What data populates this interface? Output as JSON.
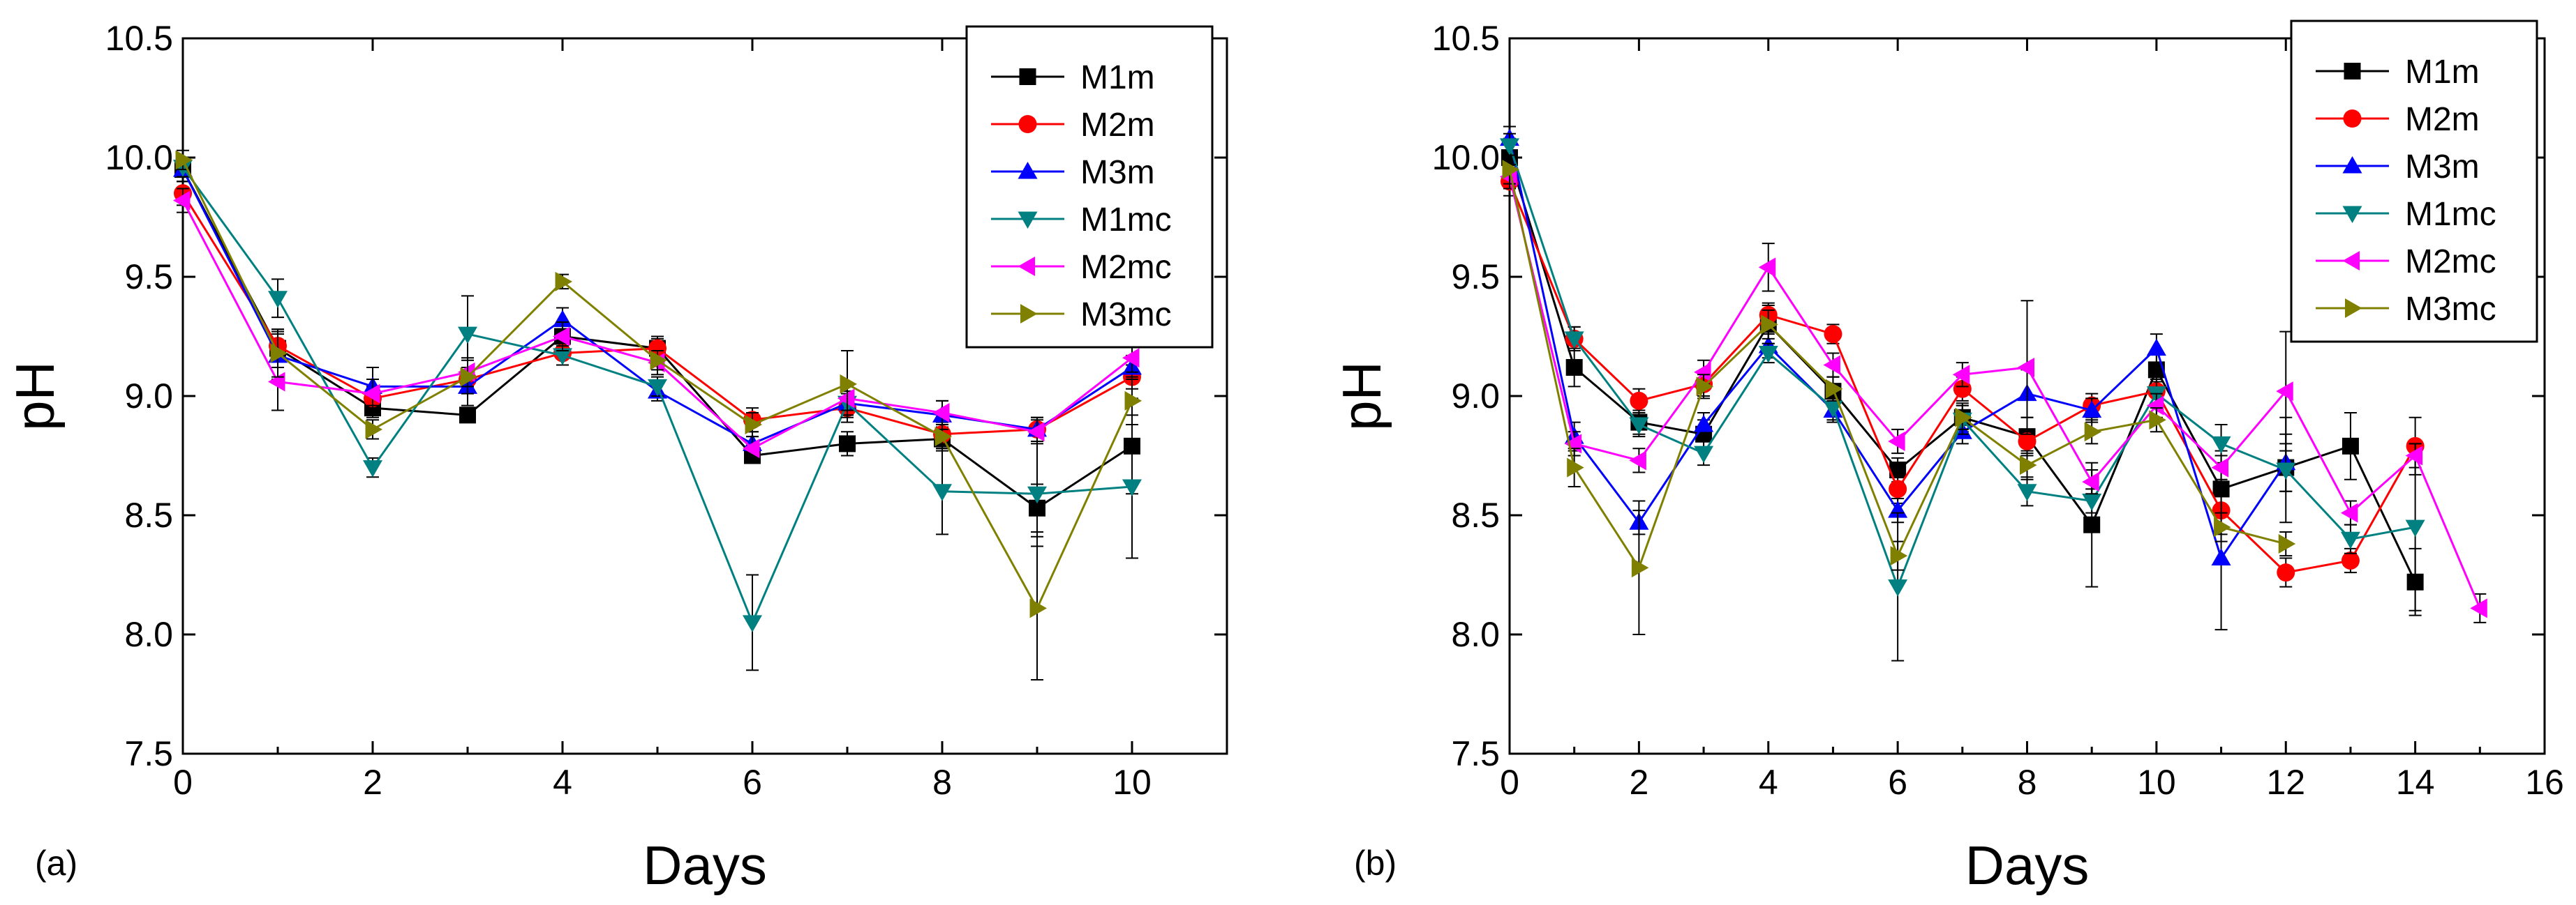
{
  "chart_data": [
    {
      "type": "line",
      "panel_label": "(a)",
      "xlabel": "Days",
      "ylabel": "pH",
      "xlim": [
        0,
        11
      ],
      "ylim": [
        7.5,
        10.5
      ],
      "xticks": [
        0,
        2,
        4,
        6,
        8,
        10
      ],
      "xtick_labels": [
        "0",
        "2",
        "4",
        "6",
        "8",
        "10"
      ],
      "yticks": [
        7.5,
        8.0,
        8.5,
        9.0,
        9.5,
        10.0,
        10.5
      ],
      "ytick_labels": [
        "7.5",
        "8.0",
        "8.5",
        "9.0",
        "9.5",
        "10.0",
        "10.5"
      ],
      "legend_position": "top-right",
      "series": [
        {
          "name": "M1m",
          "color": "#000000",
          "marker": "square",
          "x": [
            0,
            1,
            2,
            3,
            4,
            5,
            6,
            7,
            8,
            9,
            10
          ],
          "y": [
            9.95,
            9.2,
            8.95,
            8.92,
            9.25,
            9.2,
            8.75,
            8.8,
            8.82,
            8.53,
            8.79
          ],
          "err": [
            0.05,
            0.08,
            0.04,
            0.03,
            0.05,
            0.04,
            0.03,
            0.05,
            0.05,
            0.1,
            0.2
          ]
        },
        {
          "name": "M2m",
          "color": "#ff0000",
          "marker": "circle",
          "x": [
            0,
            1,
            2,
            3,
            4,
            5,
            6,
            7,
            8,
            9,
            10
          ],
          "y": [
            9.85,
            9.21,
            8.99,
            9.07,
            9.18,
            9.2,
            8.9,
            8.95,
            8.84,
            8.86,
            9.08
          ],
          "err": [
            0.05,
            0.05,
            0.05,
            0.05,
            0.05,
            0.05,
            0.05,
            0.06,
            0.05,
            0.05,
            0.05
          ]
        },
        {
          "name": "M3m",
          "color": "#0000ff",
          "marker": "triangle-up",
          "x": [
            0,
            1,
            2,
            3,
            4,
            5,
            6,
            7,
            8,
            9,
            10
          ],
          "y": [
            9.95,
            9.17,
            9.04,
            9.04,
            9.32,
            9.02,
            8.8,
            8.97,
            8.92,
            8.86,
            9.12
          ],
          "err": [
            0.05,
            0.1,
            0.08,
            0.08,
            0.05,
            0.04,
            0.05,
            0.05,
            0.06,
            0.05,
            0.05
          ]
        },
        {
          "name": "M1mc",
          "color": "#008080",
          "marker": "triangle-down",
          "x": [
            0,
            1,
            2,
            3,
            4,
            5,
            6,
            7,
            8,
            9,
            10
          ],
          "y": [
            9.96,
            9.41,
            8.7,
            9.26,
            9.17,
            9.04,
            8.05,
            8.97,
            8.6,
            8.59,
            8.62
          ],
          "err": [
            0.04,
            0.08,
            0.04,
            0.16,
            0.04,
            0.04,
            0.2,
            0.05,
            0.18,
            0.22,
            0.3
          ]
        },
        {
          "name": "M2mc",
          "color": "#ff00ff",
          "marker": "triangle-left",
          "x": [
            0,
            1,
            2,
            3,
            4,
            5,
            6,
            7,
            8,
            9,
            10
          ],
          "y": [
            9.82,
            9.06,
            9.01,
            9.1,
            9.25,
            9.14,
            8.78,
            8.99,
            8.93,
            8.85,
            9.16
          ],
          "err": [
            0.05,
            0.12,
            0.06,
            0.06,
            0.06,
            0.05,
            0.05,
            0.05,
            0.05,
            0.05,
            0.06
          ]
        },
        {
          "name": "M3mc",
          "color": "#808000",
          "marker": "triangle-right",
          "x": [
            0,
            1,
            2,
            3,
            4,
            5,
            6,
            7,
            8,
            9,
            10
          ],
          "y": [
            9.99,
            9.18,
            8.86,
            9.08,
            9.48,
            9.15,
            8.88,
            9.05,
            8.83,
            8.11,
            8.98
          ],
          "err": [
            0.04,
            0.1,
            0.04,
            0.07,
            0.03,
            0.04,
            0.05,
            0.14,
            0.05,
            0.3,
            0.1
          ]
        }
      ]
    },
    {
      "type": "line",
      "panel_label": "(b)",
      "xlabel": "Days",
      "ylabel": "pH",
      "xlim": [
        0,
        16
      ],
      "ylim": [
        7.5,
        10.5
      ],
      "xticks": [
        0,
        2,
        4,
        6,
        8,
        10,
        12,
        14,
        16
      ],
      "xtick_labels": [
        "0",
        "2",
        "4",
        "6",
        "8",
        "10",
        "12",
        "14",
        "16"
      ],
      "yticks": [
        7.5,
        8.0,
        8.5,
        9.0,
        9.5,
        10.0,
        10.5
      ],
      "ytick_labels": [
        "7.5",
        "8.0",
        "8.5",
        "9.0",
        "9.5",
        "10.0",
        "10.5"
      ],
      "legend_position": "top-right",
      "series": [
        {
          "name": "M1m",
          "color": "#000000",
          "marker": "square",
          "x": [
            0,
            1,
            2,
            3,
            4,
            5,
            6,
            7,
            8,
            9,
            10,
            11,
            12,
            13,
            14
          ],
          "y": [
            10.0,
            9.12,
            8.89,
            8.84,
            9.3,
            9.02,
            8.69,
            8.91,
            8.83,
            8.46,
            9.11,
            8.61,
            8.7,
            8.79,
            8.22
          ],
          "err": [
            0.08,
            0.08,
            0.05,
            0.06,
            0.08,
            0.06,
            0.05,
            0.06,
            0.08,
            0.26,
            0.08,
            0.16,
            0.1,
            0.14,
            0.14
          ]
        },
        {
          "name": "M2m",
          "color": "#ff0000",
          "marker": "circle",
          "x": [
            0,
            1,
            2,
            3,
            4,
            5,
            6,
            7,
            8,
            9,
            10,
            11,
            12,
            13,
            14
          ],
          "y": [
            9.9,
            9.24,
            8.98,
            9.05,
            9.34,
            9.26,
            8.61,
            9.03,
            8.81,
            8.96,
            9.02,
            8.52,
            8.26,
            8.31,
            8.79
          ],
          "err": [
            0.06,
            0.05,
            0.05,
            0.05,
            0.05,
            0.04,
            0.06,
            0.05,
            0.05,
            0.05,
            0.05,
            0.1,
            0.06,
            0.05,
            0.12
          ]
        },
        {
          "name": "M3m",
          "color": "#0000ff",
          "marker": "triangle-up",
          "x": [
            0,
            1,
            2,
            3,
            4,
            5,
            6,
            7,
            8,
            9,
            10,
            11,
            12
          ],
          "y": [
            10.08,
            8.83,
            8.47,
            8.88,
            9.21,
            8.94,
            8.52,
            8.85,
            9.01,
            8.94,
            9.2,
            8.32,
            8.72
          ],
          "err": [
            0.05,
            0.06,
            0.05,
            0.05,
            0.05,
            0.05,
            0.05,
            0.05,
            0.1,
            0.05,
            0.06,
            0.3,
            0.12
          ]
        },
        {
          "name": "M1mc",
          "color": "#008080",
          "marker": "triangle-down",
          "x": [
            0,
            1,
            2,
            3,
            4,
            5,
            6,
            7,
            8,
            9,
            10,
            11,
            12,
            13,
            14
          ],
          "y": [
            10.05,
            9.24,
            8.88,
            8.76,
            9.18,
            8.95,
            8.2,
            8.9,
            8.6,
            8.56,
            9.01,
            8.8,
            8.69,
            8.4,
            8.45
          ],
          "err": [
            0.05,
            0.05,
            0.05,
            0.05,
            0.04,
            0.05,
            0.31,
            0.06,
            0.06,
            0.05,
            0.05,
            0.08,
            0.22,
            0.06,
            0.35
          ]
        },
        {
          "name": "M2mc",
          "color": "#ff00ff",
          "marker": "triangle-left",
          "x": [
            0,
            1,
            2,
            3,
            4,
            5,
            6,
            7,
            8,
            9,
            10,
            11,
            12,
            13,
            14,
            15
          ],
          "y": [
            9.92,
            8.8,
            8.73,
            9.1,
            9.54,
            9.13,
            8.81,
            9.09,
            9.12,
            8.64,
            8.96,
            8.7,
            9.02,
            8.51,
            8.75,
            8.11
          ],
          "err": [
            0.05,
            0.05,
            0.05,
            0.05,
            0.1,
            0.05,
            0.05,
            0.05,
            0.28,
            0.05,
            0.05,
            0.05,
            0.25,
            0.05,
            0.05,
            0.06
          ]
        },
        {
          "name": "M3mc",
          "color": "#808000",
          "marker": "triangle-right",
          "x": [
            0,
            1,
            2,
            3,
            4,
            5,
            6,
            7,
            8,
            9,
            10,
            11,
            12
          ],
          "y": [
            9.95,
            8.7,
            8.28,
            9.04,
            9.3,
            9.03,
            8.33,
            8.91,
            8.71,
            8.85,
            8.9,
            8.45,
            8.38
          ],
          "err": [
            0.06,
            0.08,
            0.28,
            0.05,
            0.06,
            0.05,
            0.06,
            0.05,
            0.06,
            0.05,
            0.05,
            0.06,
            0.05
          ]
        }
      ]
    }
  ]
}
